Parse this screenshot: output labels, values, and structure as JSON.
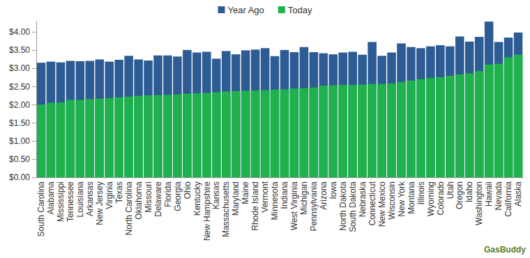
{
  "chart_data": {
    "type": "bar",
    "categories": [
      "South Carolina",
      "Alabama",
      "Mississippi",
      "Tennessee",
      "Louisiana",
      "Arkansas",
      "New Jersey",
      "Virginia",
      "Texas",
      "North Carolina",
      "Oklahoma",
      "Missouri",
      "Delaware",
      "Florida",
      "Georgia",
      "Ohio",
      "Kentucky",
      "New Hampshire",
      "Kansas",
      "Massachusetts",
      "Maryland",
      "Maine",
      "Rhode Island",
      "Vermont",
      "Minnesota",
      "Indiana",
      "West Virginia",
      "Michigan",
      "Pennsylvania",
      "Arizona",
      "Iowa",
      "North Dakota",
      "South Dakota",
      "Nebraska",
      "Connecticut",
      "New Mexico",
      "Wisconsin",
      "New York",
      "Montana",
      "Illinois",
      "Wyoming",
      "Colorado",
      "Utah",
      "Oregon",
      "Idaho",
      "Washington",
      "Hawaii",
      "Nevada",
      "California",
      "Alaska"
    ],
    "series": [
      {
        "name": "Year Ago",
        "color": "#2d5b93",
        "values": [
          3.15,
          3.18,
          3.16,
          3.2,
          3.19,
          3.2,
          3.24,
          3.18,
          3.23,
          3.34,
          3.24,
          3.21,
          3.35,
          3.35,
          3.32,
          3.5,
          3.43,
          3.45,
          3.26,
          3.47,
          3.38,
          3.49,
          3.51,
          3.55,
          3.33,
          3.5,
          3.44,
          3.58,
          3.44,
          3.41,
          3.38,
          3.43,
          3.45,
          3.37,
          3.72,
          3.34,
          3.43,
          3.68,
          3.58,
          3.55,
          3.6,
          3.63,
          3.6,
          3.87,
          3.73,
          3.86,
          4.28,
          3.72,
          3.84,
          3.98
        ]
      },
      {
        "name": "Today",
        "color": "#1eb14c",
        "values": [
          2.0,
          2.05,
          2.06,
          2.13,
          2.13,
          2.15,
          2.16,
          2.18,
          2.2,
          2.22,
          2.24,
          2.25,
          2.26,
          2.27,
          2.28,
          2.3,
          2.31,
          2.32,
          2.34,
          2.36,
          2.37,
          2.38,
          2.39,
          2.4,
          2.41,
          2.42,
          2.44,
          2.45,
          2.47,
          2.52,
          2.53,
          2.54,
          2.54,
          2.55,
          2.57,
          2.57,
          2.58,
          2.62,
          2.66,
          2.7,
          2.73,
          2.75,
          2.79,
          2.83,
          2.86,
          2.92,
          3.1,
          3.12,
          3.3,
          3.37
        ]
      }
    ],
    "ylim": [
      0,
      4.3
    ],
    "yticks": [
      {
        "value": 0,
        "label": "$0.00"
      },
      {
        "value": 0.5,
        "label": "$0.50"
      },
      {
        "value": 1,
        "label": "$1.00"
      },
      {
        "value": 1.5,
        "label": "$1.50"
      },
      {
        "value": 2,
        "label": "$2.00"
      },
      {
        "value": 2.5,
        "label": "$2.50"
      },
      {
        "value": 3,
        "label": "$3.00"
      },
      {
        "value": 3.5,
        "label": "$3.50"
      },
      {
        "value": 4,
        "label": "$4.00"
      }
    ],
    "grid": false,
    "legend": "top",
    "source": "GasBuddy"
  }
}
